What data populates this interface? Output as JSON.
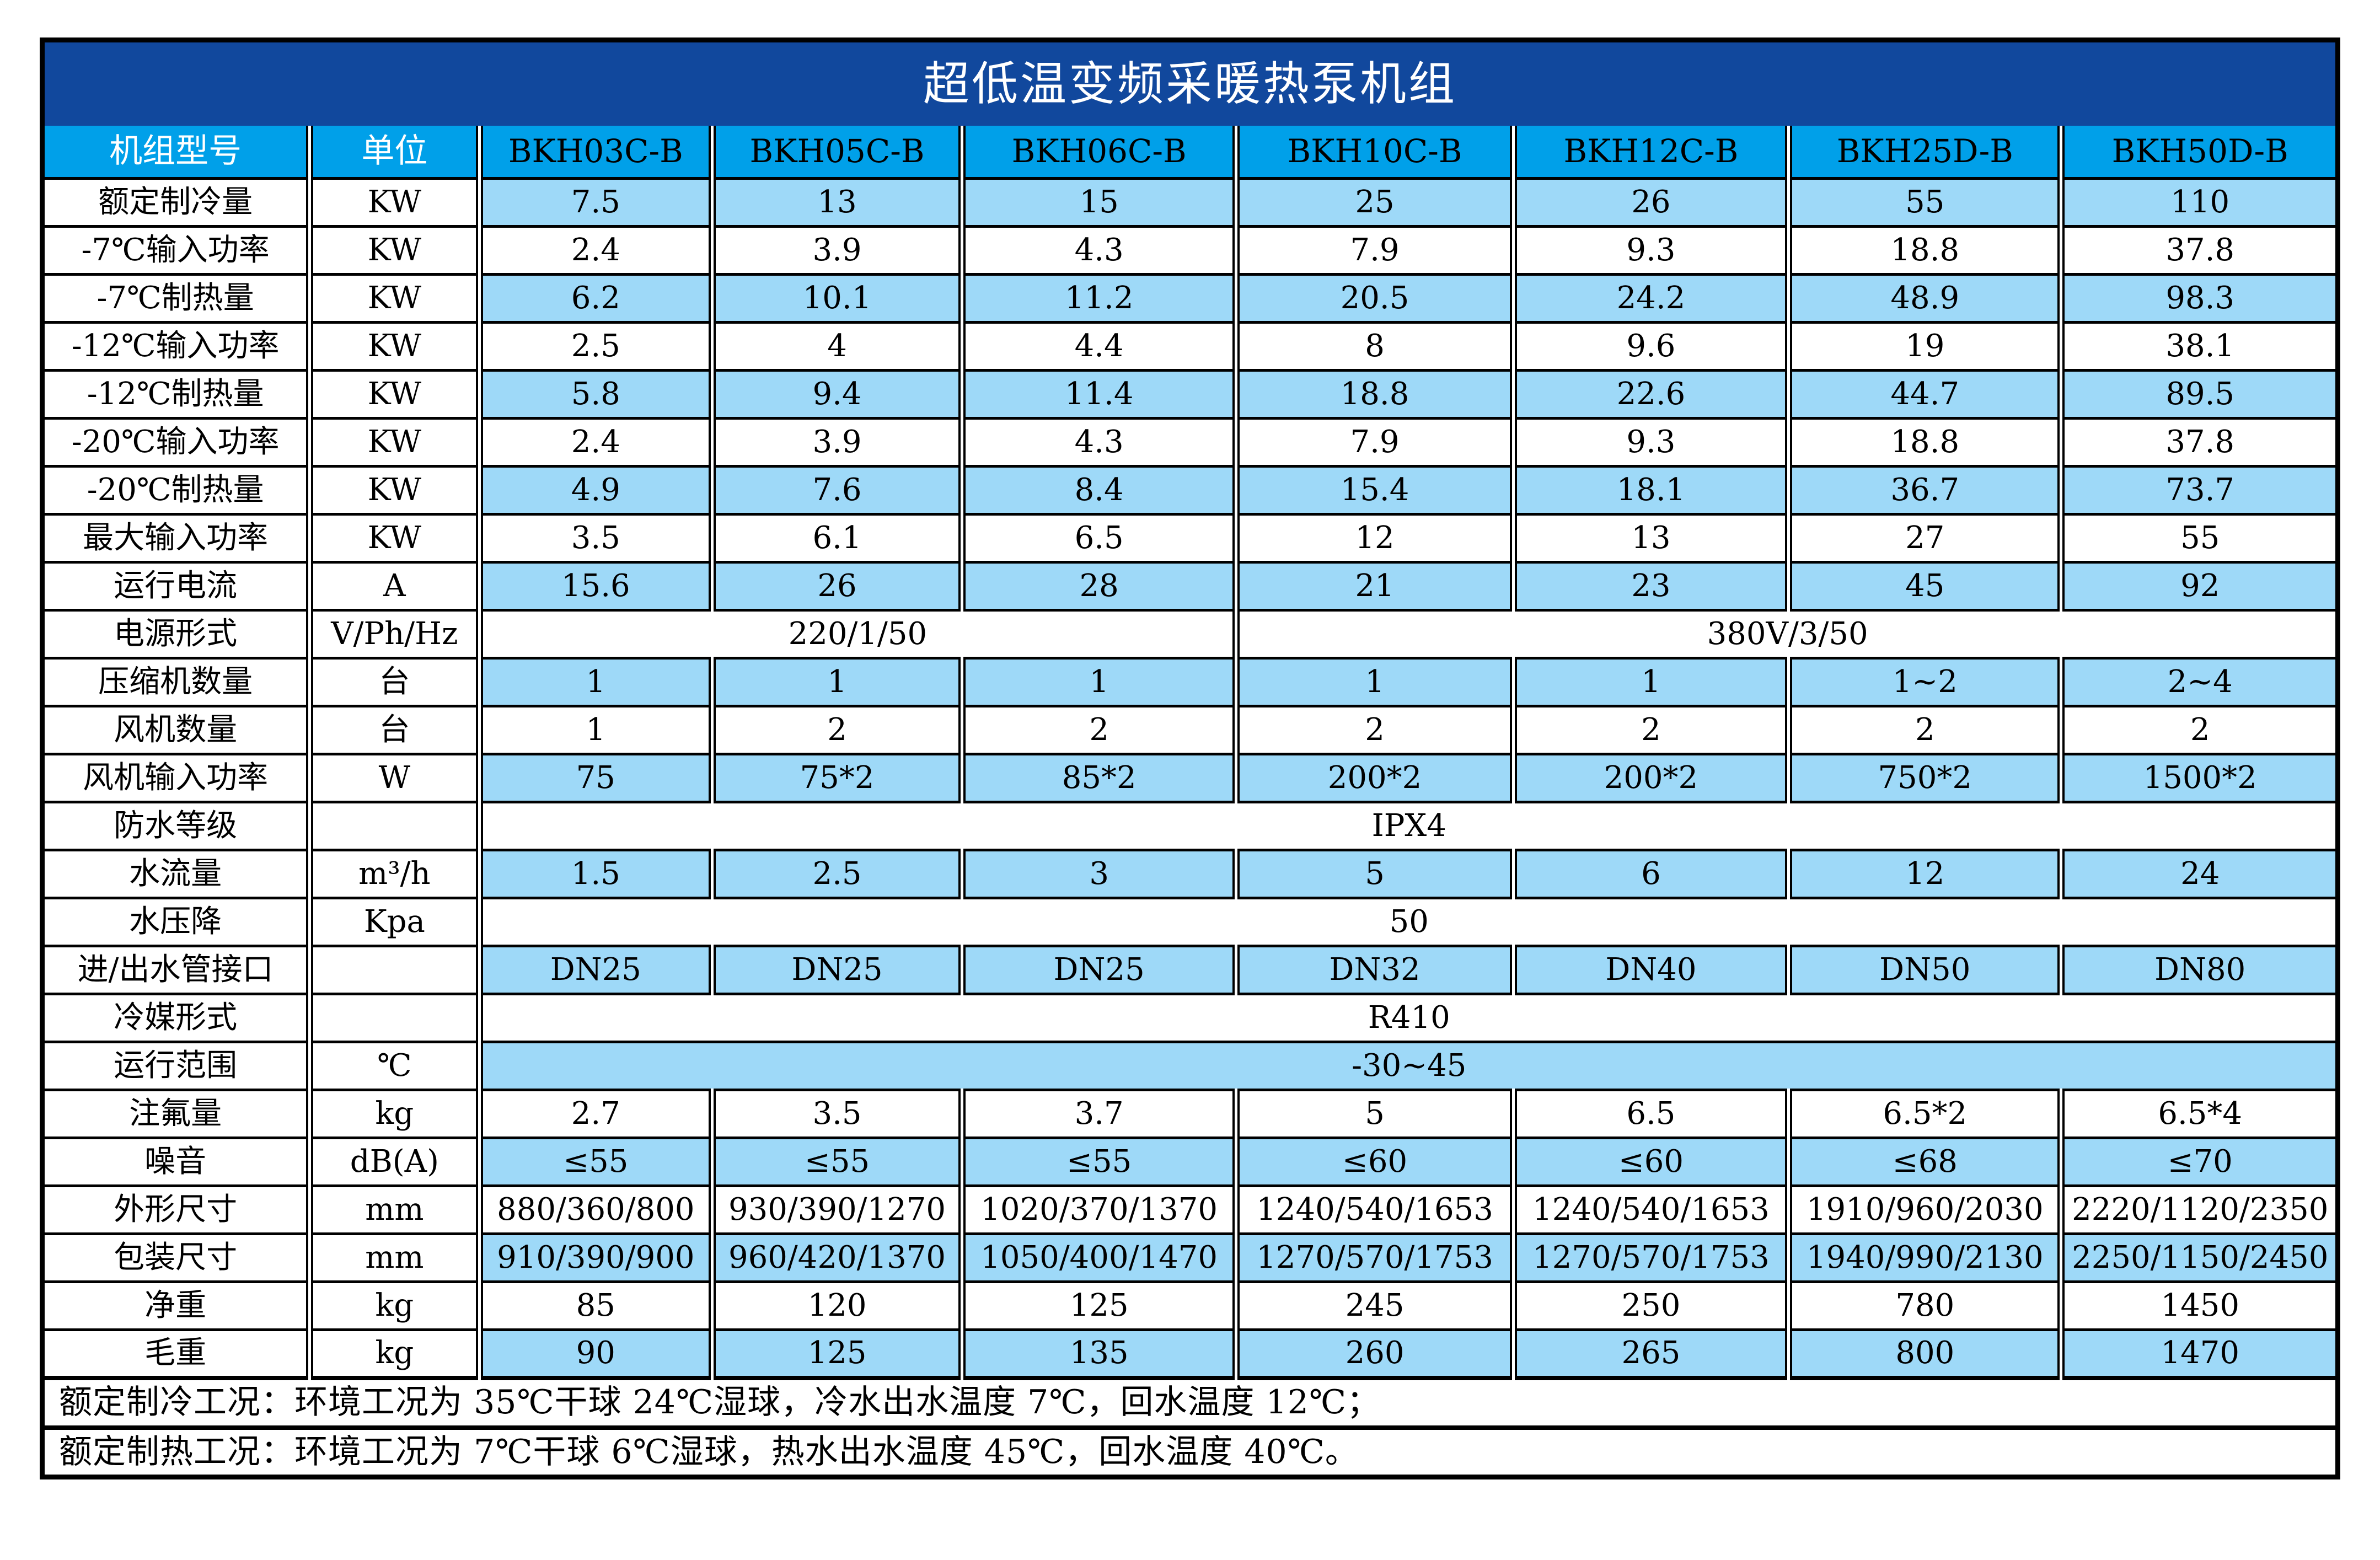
{
  "title": "超低温变频采暖热泵机组",
  "colors": {
    "title_bg": "#11489D",
    "header_bg": "#00A0E9",
    "stripe_blue": "#9ED9F8",
    "label_gray": "#E7E7E7",
    "border": "#000000",
    "title_text": "#FFFFFF",
    "header_text": "#FFFFFF"
  },
  "table": {
    "header": [
      "机组型号",
      "单位",
      "BKH03C-B",
      "BKH05C-B",
      "BKH06C-B",
      "BKH10C-B",
      "BKH12C-B",
      "BKH25D-B",
      "BKH50D-B"
    ],
    "rows": [
      {
        "label": "额定制冷量",
        "unit": "KW",
        "values": [
          "7.5",
          "13",
          "15",
          "25",
          "26",
          "55",
          "110"
        ]
      },
      {
        "label": "-7℃输入功率",
        "unit": "KW",
        "values": [
          "2.4",
          "3.9",
          "4.3",
          "7.9",
          "9.3",
          "18.8",
          "37.8"
        ]
      },
      {
        "label": "-7℃制热量",
        "unit": "KW",
        "values": [
          "6.2",
          "10.1",
          "11.2",
          "20.5",
          "24.2",
          "48.9",
          "98.3"
        ]
      },
      {
        "label": "-12℃输入功率",
        "unit": "KW",
        "values": [
          "2.5",
          "4",
          "4.4",
          "8",
          "9.6",
          "19",
          "38.1"
        ]
      },
      {
        "label": "-12℃制热量",
        "unit": "KW",
        "values": [
          "5.8",
          "9.4",
          "11.4",
          "18.8",
          "22.6",
          "44.7",
          "89.5"
        ]
      },
      {
        "label": "-20℃输入功率",
        "unit": "KW",
        "values": [
          "2.4",
          "3.9",
          "4.3",
          "7.9",
          "9.3",
          "18.8",
          "37.8"
        ]
      },
      {
        "label": "-20℃制热量",
        "unit": "KW",
        "values": [
          "4.9",
          "7.6",
          "8.4",
          "15.4",
          "18.1",
          "36.7",
          "73.7"
        ]
      },
      {
        "label": "最大输入功率",
        "unit": "KW",
        "values": [
          "3.5",
          "6.1",
          "6.5",
          "12",
          "13",
          "27",
          "55"
        ]
      },
      {
        "label": "运行电流",
        "unit": "A",
        "values": [
          "15.6",
          "26",
          "28",
          "21",
          "23",
          "45",
          "92"
        ]
      },
      {
        "label": "电源形式",
        "unit": "V/Ph/Hz",
        "spans": [
          {
            "text": "220/1/50",
            "cols": 3
          },
          {
            "text": "380V/3/50",
            "cols": 4
          }
        ]
      },
      {
        "label": "压缩机数量",
        "unit": "台",
        "values": [
          "1",
          "1",
          "1",
          "1",
          "1",
          "1~2",
          "2~4"
        ]
      },
      {
        "label": "风机数量",
        "unit": "台",
        "values": [
          "1",
          "2",
          "2",
          "2",
          "2",
          "2",
          "2"
        ]
      },
      {
        "label": "风机输入功率",
        "unit": "W",
        "values": [
          "75",
          "75*2",
          "85*2",
          "200*2",
          "200*2",
          "750*2",
          "1500*2"
        ]
      },
      {
        "label": "防水等级",
        "unit": "",
        "spans": [
          {
            "text": "IPX4",
            "cols": 7
          }
        ]
      },
      {
        "label": "水流量",
        "unit": "m³/h",
        "values": [
          "1.5",
          "2.5",
          "3",
          "5",
          "6",
          "12",
          "24"
        ]
      },
      {
        "label": "水压降",
        "unit": "Kpa",
        "spans": [
          {
            "text": "50",
            "cols": 7
          }
        ]
      },
      {
        "label": "进/出水管接口",
        "unit": "",
        "values": [
          "DN25",
          "DN25",
          "DN25",
          "DN32",
          "DN40",
          "DN50",
          "DN80"
        ]
      },
      {
        "label": "冷媒形式",
        "unit": "",
        "spans": [
          {
            "text": "R410",
            "cols": 7
          }
        ]
      },
      {
        "label": "运行范围",
        "unit": "℃",
        "spans": [
          {
            "text": "-30~45",
            "cols": 7
          }
        ]
      },
      {
        "label": "注氟量",
        "unit": "kg",
        "values": [
          "2.7",
          "3.5",
          "3.7",
          "5",
          "6.5",
          "6.5*2",
          "6.5*4"
        ]
      },
      {
        "label": "噪音",
        "unit": "dB(A)",
        "values": [
          "≤55",
          "≤55",
          "≤55",
          "≤60",
          "≤60",
          "≤68",
          "≤70"
        ]
      },
      {
        "label": "外形尺寸",
        "unit": "mm",
        "values": [
          "880/360/800",
          "930/390/1270",
          "1020/370/1370",
          "1240/540/1653",
          "1240/540/1653",
          "1910/960/2030",
          "2220/1120/2350"
        ]
      },
      {
        "label": "包装尺寸",
        "unit": "mm",
        "values": [
          "910/390/900",
          "960/420/1370",
          "1050/400/1470",
          "1270/570/1753",
          "1270/570/1753",
          "1940/990/2130",
          "2250/1150/2450"
        ]
      },
      {
        "label": "净重",
        "unit": "kg",
        "values": [
          "85",
          "120",
          "125",
          "245",
          "250",
          "780",
          "1450"
        ]
      },
      {
        "label": "毛重",
        "unit": "kg",
        "values": [
          "90",
          "125",
          "135",
          "260",
          "265",
          "800",
          "1470"
        ]
      }
    ],
    "notes": [
      "额定制冷工况：环境工况为 35℃干球 24℃湿球，冷水出水温度 7℃，回水温度 12℃；",
      "额定制热工况：环境工况为 7℃干球 6℃湿球，热水出水温度 45℃，回水温度 40℃。"
    ]
  }
}
